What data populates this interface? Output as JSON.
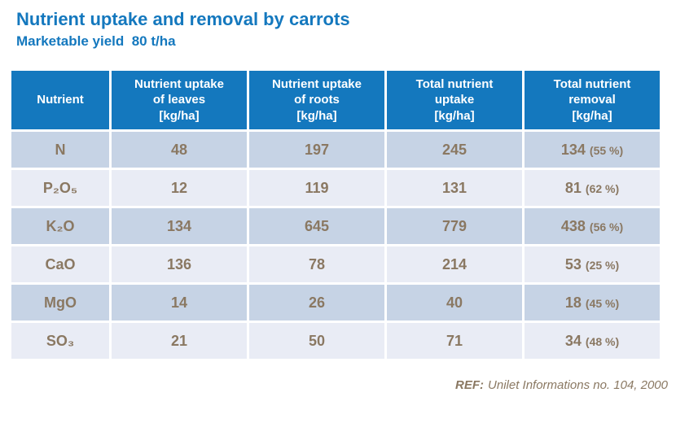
{
  "title": "Nutrient uptake and removal by carrots",
  "subtitle": "Marketable yield  80 t/ha",
  "table": {
    "headers": [
      "Nutrient",
      "Nutrient uptake\nof leaves\n[kg/ha]",
      "Nutrient uptake\nof roots\n[kg/ha]",
      "Total nutrient\nuptake\n[kg/ha]",
      "Total nutrient\nremoval\n[kg/ha]"
    ],
    "rows": [
      {
        "nutrient": "N",
        "leaves": "48",
        "roots": "197",
        "total": "245",
        "removal": "134",
        "removal_pct": "(55 %)"
      },
      {
        "nutrient": "P₂O₅",
        "leaves": "12",
        "roots": "119",
        "total": "131",
        "removal": "81",
        "removal_pct": "(62 %)"
      },
      {
        "nutrient": "K₂O",
        "leaves": "134",
        "roots": "645",
        "total": "779",
        "removal": "438",
        "removal_pct": "(56 %)"
      },
      {
        "nutrient": "CaO",
        "leaves": "136",
        "roots": "78",
        "total": "214",
        "removal": "53",
        "removal_pct": "(25 %)"
      },
      {
        "nutrient": "MgO",
        "leaves": "14",
        "roots": "26",
        "total": "40",
        "removal": "18",
        "removal_pct": "(45 %)"
      },
      {
        "nutrient": "SO₃",
        "leaves": "21",
        "roots": "50",
        "total": "71",
        "removal": "34",
        "removal_pct": "(48 %)"
      }
    ]
  },
  "footer": {
    "ref_label": "REF:",
    "ref_text": "Unilet Informations no. 104, 2000"
  },
  "colors": {
    "accent_blue": "#1478be",
    "row_dark": "#c6d3e5",
    "row_light": "#e9ecf5",
    "text_brown": "#8a7862",
    "header_text": "#ffffff"
  },
  "chart_data": {
    "type": "table",
    "title": "Nutrient uptake and removal by carrots",
    "subtitle": "Marketable yield 80 t/ha",
    "columns": [
      "Nutrient",
      "Nutrient uptake of leaves [kg/ha]",
      "Nutrient uptake of roots [kg/ha]",
      "Total nutrient uptake [kg/ha]",
      "Total nutrient removal [kg/ha]"
    ],
    "rows": [
      [
        "N",
        48,
        197,
        245,
        "134 (55 %)"
      ],
      [
        "P2O5",
        12,
        119,
        131,
        "81 (62 %)"
      ],
      [
        "K2O",
        134,
        645,
        779,
        "438 (56 %)"
      ],
      [
        "CaO",
        136,
        78,
        214,
        "53 (25 %)"
      ],
      [
        "MgO",
        14,
        26,
        40,
        "18 (45 %)"
      ],
      [
        "SO3",
        21,
        50,
        71,
        "34 (48 %)"
      ]
    ],
    "source": "REF: Unilet Informations no. 104, 2000"
  }
}
